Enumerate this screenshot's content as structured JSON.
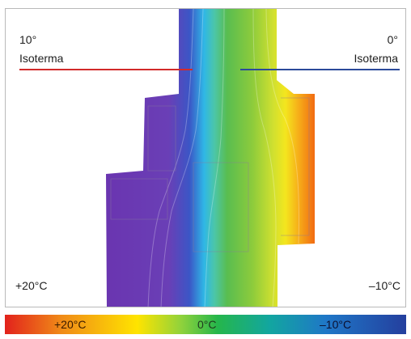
{
  "isotherms": {
    "warm": {
      "degree": "10°",
      "name": "Isoterma",
      "color": "#d22a2a"
    },
    "cold": {
      "degree": "0°",
      "name": "Isoterma",
      "color": "#2b4a9a"
    }
  },
  "sides": {
    "inside_temperature": "+20°C",
    "outside_temperature": "–10°C"
  },
  "legend": {
    "warm_label": "+20°C",
    "zero_label": "0°C",
    "cold_label": "–10°C"
  }
}
